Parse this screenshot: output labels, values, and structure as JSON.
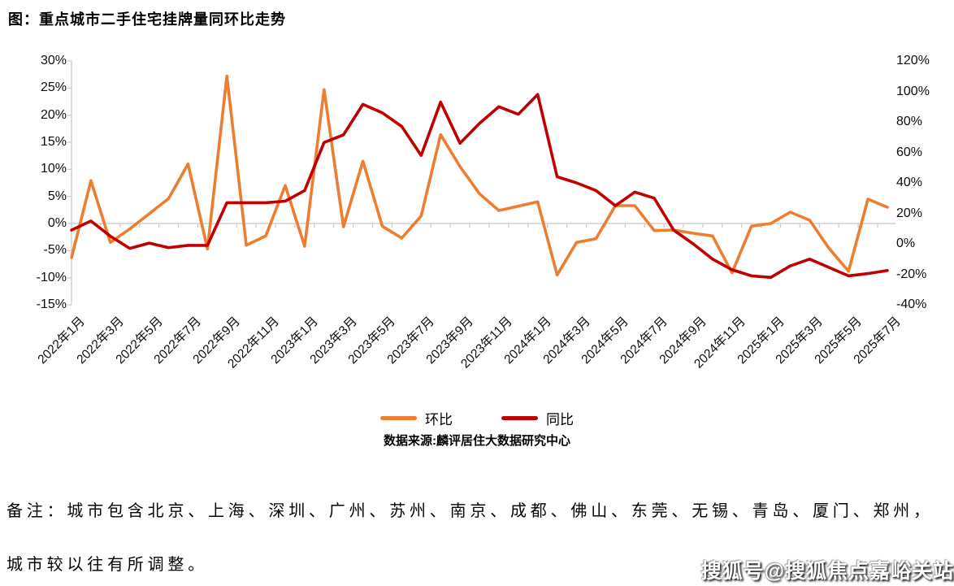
{
  "title": "图：重点城市二手住宅挂牌量同环比走势",
  "chart_data": {
    "type": "line",
    "title": "图：重点城市二手住宅挂牌量同环比走势",
    "x_label_step": 2,
    "x": [
      "2022年1月",
      "2022年2月",
      "2022年3月",
      "2022年4月",
      "2022年5月",
      "2022年6月",
      "2022年7月",
      "2022年8月",
      "2022年9月",
      "2022年10月",
      "2022年11月",
      "2022年12月",
      "2023年1月",
      "2023年2月",
      "2023年3月",
      "2023年4月",
      "2023年5月",
      "2023年6月",
      "2023年7月",
      "2023年8月",
      "2023年9月",
      "2023年10月",
      "2023年11月",
      "2023年12月",
      "2024年1月",
      "2024年2月",
      "2024年3月",
      "2024年4月",
      "2024年5月",
      "2024年6月",
      "2024年7月",
      "2024年8月",
      "2024年9月",
      "2024年10月",
      "2024年11月",
      "2024年12月",
      "2025年1月",
      "2025年2月",
      "2025年3月",
      "2025年4月",
      "2025年5月",
      "2025年6月",
      "2025年7月"
    ],
    "series": [
      {
        "name": "环比",
        "axis": "left",
        "color": "#ED7D31",
        "values": [
          -6.3,
          7.9,
          -3.5,
          -1.0,
          1.8,
          4.6,
          11.0,
          -4.7,
          27.2,
          -4.0,
          -2.3,
          7.0,
          -4.2,
          24.7,
          -0.6,
          11.5,
          -0.5,
          -2.7,
          1.4,
          16.4,
          10.5,
          5.5,
          2.4,
          3.2,
          4.0,
          -9.5,
          -3.5,
          -2.8,
          3.3,
          3.3,
          -1.3,
          -1.2,
          -1.8,
          -2.3,
          -9.1,
          -0.5,
          0.0,
          2.1,
          0.6,
          -4.6,
          -8.8,
          4.5,
          3.0
        ]
      },
      {
        "name": "同比",
        "axis": "right",
        "color": "#C00000",
        "values": [
          9,
          15,
          5,
          -3,
          0.5,
          -2.5,
          -1,
          -1,
          27,
          27,
          27,
          28,
          35,
          66.5,
          71.5,
          91.5,
          86,
          77,
          58,
          93,
          66,
          79,
          90,
          85,
          98,
          44,
          40,
          35,
          25,
          34,
          30,
          9,
          0,
          -10,
          -17,
          -21,
          -22,
          -14.5,
          -10,
          -15.5,
          -21,
          -19.5,
          -17.5
        ]
      }
    ],
    "left_axis": {
      "min": -15,
      "max": 30,
      "step": 5,
      "ticks": [
        "30%",
        "25%",
        "20%",
        "15%",
        "10%",
        "5%",
        "0%",
        "-5%",
        "-10%",
        "-15%"
      ]
    },
    "right_axis": {
      "min": -40,
      "max": 120,
      "step": 20,
      "ticks": [
        "120%",
        "100%",
        "80%",
        "60%",
        "40%",
        "20%",
        "0%",
        "-20%",
        "-40%"
      ]
    },
    "grid": "zero-line-only",
    "legend_position": "bottom-center",
    "legend": [
      "环比",
      "同比"
    ],
    "source": "数据来源:麟评居住大数据研究中心"
  },
  "note": {
    "line1": "备注：城市包含北京、上海、深圳、广州、苏州、南京、成都、佛山、东莞、无锡、青岛、厦门、郑州，",
    "line2": "城市较以往有所调整。"
  },
  "watermark": "搜狐号@搜狐焦点嘉峪关站",
  "colors": {
    "huanbi_orange": "#ED7D31",
    "tongbi_red": "#C00000",
    "axis_gray": "#D2D2D2",
    "text": "#000000"
  }
}
